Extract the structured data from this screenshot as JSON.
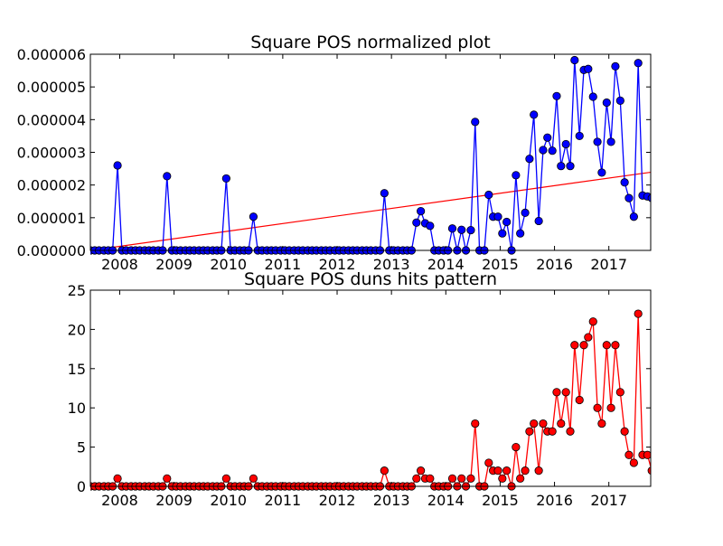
{
  "chart_data": [
    {
      "type": "line",
      "title": "Square POS normalized plot",
      "xlabel": "",
      "ylabel": "",
      "xlim": [
        2007.46,
        2017.77
      ],
      "ylim": [
        0,
        6e-06
      ],
      "yticks": [
        "0.000000",
        "0.000001",
        "0.000002",
        "0.000003",
        "0.000004",
        "0.000005",
        "0.000006"
      ],
      "ytick_values": [
        0,
        1e-06,
        2e-06,
        3e-06,
        4e-06,
        5e-06,
        6e-06
      ],
      "xticks": [
        "2008",
        "2009",
        "2010",
        "2011",
        "2012",
        "2013",
        "2014",
        "2015",
        "2016",
        "2017"
      ],
      "xtick_values": [
        2008,
        2009,
        2010,
        2011,
        2012,
        2013,
        2014,
        2015,
        2016,
        2017
      ],
      "colors": {
        "line": "#0000ff",
        "marker": "#0000ff",
        "trend": "#ff0000"
      },
      "series": [
        {
          "x": [
            2007.46,
            2007.54,
            2007.62,
            2007.71,
            2007.79,
            2007.87,
            2007.96,
            2008.04,
            2008.12,
            2008.21,
            2008.29,
            2008.37,
            2008.46,
            2008.54,
            2008.62,
            2008.71,
            2008.79,
            2008.87,
            2008.96,
            2009.04,
            2009.12,
            2009.21,
            2009.29,
            2009.37,
            2009.46,
            2009.54,
            2009.62,
            2009.71,
            2009.79,
            2009.87,
            2009.96,
            2010.04,
            2010.12,
            2010.21,
            2010.29,
            2010.37,
            2010.46,
            2010.54,
            2010.62,
            2010.71,
            2010.79,
            2010.87,
            2010.96,
            2011.04,
            2011.12,
            2011.21,
            2011.29,
            2011.37,
            2011.46,
            2011.54,
            2011.62,
            2011.71,
            2011.79,
            2011.87,
            2011.96,
            2012.04,
            2012.12,
            2012.21,
            2012.29,
            2012.37,
            2012.46,
            2012.54,
            2012.62,
            2012.71,
            2012.79,
            2012.87,
            2012.96,
            2013.04,
            2013.12,
            2013.21,
            2013.29,
            2013.37,
            2013.46,
            2013.54,
            2013.62,
            2013.71,
            2013.79,
            2013.87,
            2013.96,
            2014.04,
            2014.12,
            2014.21,
            2014.29,
            2014.37,
            2014.46,
            2014.54,
            2014.62,
            2014.71,
            2014.79,
            2014.87,
            2014.96,
            2015.04,
            2015.12,
            2015.21,
            2015.29,
            2015.37,
            2015.46,
            2015.54,
            2015.62,
            2015.71,
            2015.79,
            2015.87,
            2015.96,
            2016.04,
            2016.12,
            2016.21,
            2016.29,
            2016.37,
            2016.46,
            2016.54,
            2016.62,
            2016.71,
            2016.79,
            2016.87,
            2016.96,
            2017.04,
            2017.12,
            2017.21,
            2017.29,
            2017.37,
            2017.46,
            2017.54,
            2017.62,
            2017.71,
            2017.79
          ],
          "y": [
            0,
            0,
            0,
            0,
            0,
            0,
            2.6e-06,
            0,
            0,
            0,
            0,
            0,
            0,
            0,
            0,
            0,
            0,
            2.27e-06,
            0,
            0,
            0,
            0,
            0,
            0,
            0,
            0,
            0,
            0,
            0,
            0,
            2.2e-06,
            0,
            0,
            0,
            0,
            0,
            1.03e-06,
            0,
            0,
            0,
            0,
            0,
            0,
            0,
            0,
            0,
            0,
            0,
            0,
            0,
            0,
            0,
            0,
            0,
            0,
            0,
            0,
            0,
            0,
            0,
            0,
            0,
            0,
            0,
            0,
            1.75e-06,
            0,
            0,
            0,
            0,
            0,
            0,
            8.5e-07,
            1.2e-06,
            8.3e-07,
            7.5e-07,
            0,
            0,
            0,
            0,
            6.7e-07,
            0,
            6.3e-07,
            0,
            6.2e-07,
            3.93e-06,
            0,
            0,
            1.7e-06,
            1.03e-06,
            1.03e-06,
            5.2e-07,
            8.7e-07,
            0,
            2.3e-06,
            5.2e-07,
            1.15e-06,
            2.8e-06,
            4.15e-06,
            9e-07,
            3.07e-06,
            3.45e-06,
            3.05e-06,
            4.72e-06,
            2.58e-06,
            3.25e-06,
            2.58e-06,
            5.82e-06,
            3.5e-06,
            5.52e-06,
            5.55e-06,
            4.7e-06,
            3.32e-06,
            2.38e-06,
            4.52e-06,
            3.32e-06,
            5.63e-06,
            4.58e-06,
            2.08e-06,
            1.6e-06,
            1.03e-06,
            5.73e-06,
            1.68e-06,
            1.65e-06,
            1.6e-06
          ]
        }
      ],
      "trend": {
        "x": [
          2007.46,
          2017.77
        ],
        "y": [
          0,
          2.39e-06
        ]
      }
    },
    {
      "type": "line",
      "title": "Square POS duns hits pattern",
      "xlabel": "",
      "ylabel": "",
      "xlim": [
        2007.46,
        2017.77
      ],
      "ylim": [
        0,
        25
      ],
      "yticks": [
        "0",
        "5",
        "10",
        "15",
        "20",
        "25"
      ],
      "ytick_values": [
        0,
        5,
        10,
        15,
        20,
        25
      ],
      "xticks": [
        "2008",
        "2009",
        "2010",
        "2011",
        "2012",
        "2013",
        "2014",
        "2015",
        "2016",
        "2017"
      ],
      "xtick_values": [
        2008,
        2009,
        2010,
        2011,
        2012,
        2013,
        2014,
        2015,
        2016,
        2017
      ],
      "colors": {
        "line": "#ff0000",
        "marker": "#ff0000"
      },
      "series": [
        {
          "x": [
            2007.46,
            2007.54,
            2007.62,
            2007.71,
            2007.79,
            2007.87,
            2007.96,
            2008.04,
            2008.12,
            2008.21,
            2008.29,
            2008.37,
            2008.46,
            2008.54,
            2008.62,
            2008.71,
            2008.79,
            2008.87,
            2008.96,
            2009.04,
            2009.12,
            2009.21,
            2009.29,
            2009.37,
            2009.46,
            2009.54,
            2009.62,
            2009.71,
            2009.79,
            2009.87,
            2009.96,
            2010.04,
            2010.12,
            2010.21,
            2010.29,
            2010.37,
            2010.46,
            2010.54,
            2010.62,
            2010.71,
            2010.79,
            2010.87,
            2010.96,
            2011.04,
            2011.12,
            2011.21,
            2011.29,
            2011.37,
            2011.46,
            2011.54,
            2011.62,
            2011.71,
            2011.79,
            2011.87,
            2011.96,
            2012.04,
            2012.12,
            2012.21,
            2012.29,
            2012.37,
            2012.46,
            2012.54,
            2012.62,
            2012.71,
            2012.79,
            2012.87,
            2012.96,
            2013.04,
            2013.12,
            2013.21,
            2013.29,
            2013.37,
            2013.46,
            2013.54,
            2013.62,
            2013.71,
            2013.79,
            2013.87,
            2013.96,
            2014.04,
            2014.12,
            2014.21,
            2014.29,
            2014.37,
            2014.46,
            2014.54,
            2014.62,
            2014.71,
            2014.79,
            2014.87,
            2014.96,
            2015.04,
            2015.12,
            2015.21,
            2015.29,
            2015.37,
            2015.46,
            2015.54,
            2015.62,
            2015.71,
            2015.79,
            2015.87,
            2015.96,
            2016.04,
            2016.12,
            2016.21,
            2016.29,
            2016.37,
            2016.46,
            2016.54,
            2016.62,
            2016.71,
            2016.79,
            2016.87,
            2016.96,
            2017.04,
            2017.12,
            2017.21,
            2017.29,
            2017.37,
            2017.46,
            2017.54,
            2017.62,
            2017.71,
            2017.79
          ],
          "y": [
            0,
            0,
            0,
            0,
            0,
            0,
            1,
            0,
            0,
            0,
            0,
            0,
            0,
            0,
            0,
            0,
            0,
            1,
            0,
            0,
            0,
            0,
            0,
            0,
            0,
            0,
            0,
            0,
            0,
            0,
            1,
            0,
            0,
            0,
            0,
            0,
            1,
            0,
            0,
            0,
            0,
            0,
            0,
            0,
            0,
            0,
            0,
            0,
            0,
            0,
            0,
            0,
            0,
            0,
            0,
            0,
            0,
            0,
            0,
            0,
            0,
            0,
            0,
            0,
            0,
            2,
            0,
            0,
            0,
            0,
            0,
            0,
            1,
            2,
            1,
            1,
            0,
            0,
            0,
            0,
            1,
            0,
            1,
            0,
            1,
            8,
            0,
            0,
            3,
            2,
            2,
            1,
            2,
            0,
            5,
            1,
            2,
            7,
            8,
            2,
            8,
            7,
            7,
            12,
            8,
            12,
            7,
            18,
            11,
            18,
            19,
            21,
            10,
            8,
            18,
            10,
            18,
            12,
            7,
            4,
            3,
            22,
            4,
            4,
            2
          ]
        }
      ]
    }
  ]
}
